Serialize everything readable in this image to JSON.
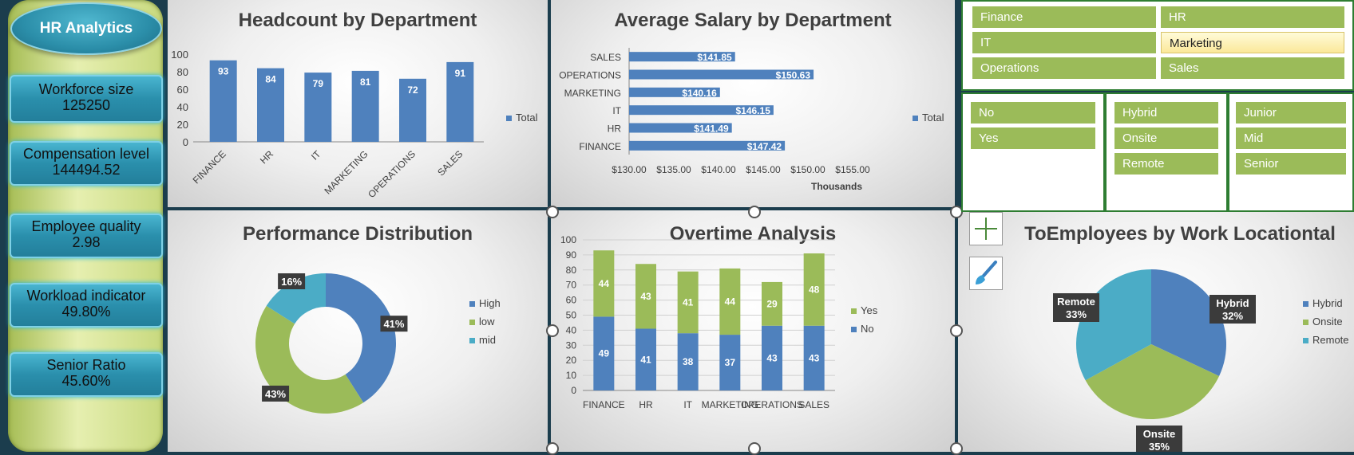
{
  "app_title": "HR Analytics",
  "kpis": [
    {
      "label": "Workforce size",
      "value": "125250"
    },
    {
      "label": "Compensation level",
      "value": "144494.52"
    },
    {
      "label": "Employee quality",
      "value": "2.98"
    },
    {
      "label": "Workload indicator",
      "value": "49.80%"
    },
    {
      "label": "Senior Ratio",
      "value": "45.60%"
    }
  ],
  "chart_data": [
    {
      "type": "bar",
      "title": "Headcount by Department",
      "categories": [
        "FINANCE",
        "HR",
        "IT",
        "MARKETING",
        "OPERATIONS",
        "SALES"
      ],
      "series": [
        {
          "name": "Total",
          "values": [
            93,
            84,
            79,
            81,
            72,
            91
          ]
        }
      ],
      "ylim": [
        0,
        100
      ],
      "yticks": [
        "0",
        "20",
        "40",
        "60",
        "80",
        "100"
      ],
      "legend": "right"
    },
    {
      "type": "bar",
      "orientation": "horizontal",
      "title": "Average Salary by Department",
      "categories": [
        "FINANCE",
        "HR",
        "IT",
        "MARKETING",
        "OPERATIONS",
        "SALES"
      ],
      "series": [
        {
          "name": "Total",
          "values": [
            147.42,
            141.49,
            146.15,
            140.16,
            150.63,
            141.85
          ]
        }
      ],
      "labels": [
        "$147.42",
        "$141.49",
        "$146.15",
        "$140.16",
        "$150.63",
        "$141.85"
      ],
      "xlim": [
        130,
        155
      ],
      "xticks": [
        "$130.00",
        "$135.00",
        "$140.00",
        "$145.00",
        "$150.00",
        "$155.00"
      ],
      "xlabel": "Thousands",
      "legend": "right"
    },
    {
      "type": "pie",
      "donut": true,
      "title": "Performance Distribution",
      "categories": [
        "High",
        "low",
        "mid"
      ],
      "values": [
        41,
        43,
        16
      ],
      "labels": [
        "41%",
        "43%",
        "16%"
      ],
      "colors": [
        "#4f81bd",
        "#9bbb59",
        "#4bacc6"
      ],
      "legend": "right"
    },
    {
      "type": "bar",
      "stacked": true,
      "title": "Overtime Analysis",
      "categories": [
        "FINANCE",
        "HR",
        "IT",
        "MARKETING",
        "OPERATIONS",
        "SALES"
      ],
      "series": [
        {
          "name": "No",
          "values": [
            49,
            41,
            38,
            37,
            43,
            43
          ]
        },
        {
          "name": "Yes",
          "values": [
            44,
            43,
            41,
            44,
            29,
            48
          ]
        }
      ],
      "ylim": [
        0,
        100
      ],
      "yticks": [
        "0",
        "10",
        "20",
        "30",
        "40",
        "50",
        "60",
        "70",
        "80",
        "90",
        "100"
      ],
      "legend": "right"
    },
    {
      "type": "pie",
      "title": "ToEmployees by Work Locationtal",
      "categories": [
        "Hybrid",
        "Onsite",
        "Remote"
      ],
      "values": [
        32,
        35,
        33
      ],
      "labels": [
        {
          "name": "Hybrid",
          "pct": "32%"
        },
        {
          "name": "Onsite",
          "pct": "35%"
        },
        {
          "name": "Remote",
          "pct": "33%"
        }
      ],
      "colors": [
        "#4f81bd",
        "#9bbb59",
        "#4bacc6"
      ],
      "legend": "right"
    }
  ],
  "slicers": {
    "department": [
      "Finance",
      "HR",
      "IT",
      "Marketing",
      "Operations",
      "Sales"
    ],
    "department_selected": "Marketing",
    "overtime": [
      "No",
      "Yes"
    ],
    "work_location": [
      "Hybrid",
      "Onsite",
      "Remote"
    ],
    "seniority": [
      "Junior",
      "Mid",
      "Senior"
    ]
  },
  "colors": {
    "blue": "#4f81bd",
    "green": "#9bbb59",
    "teal": "#4bacc6"
  }
}
